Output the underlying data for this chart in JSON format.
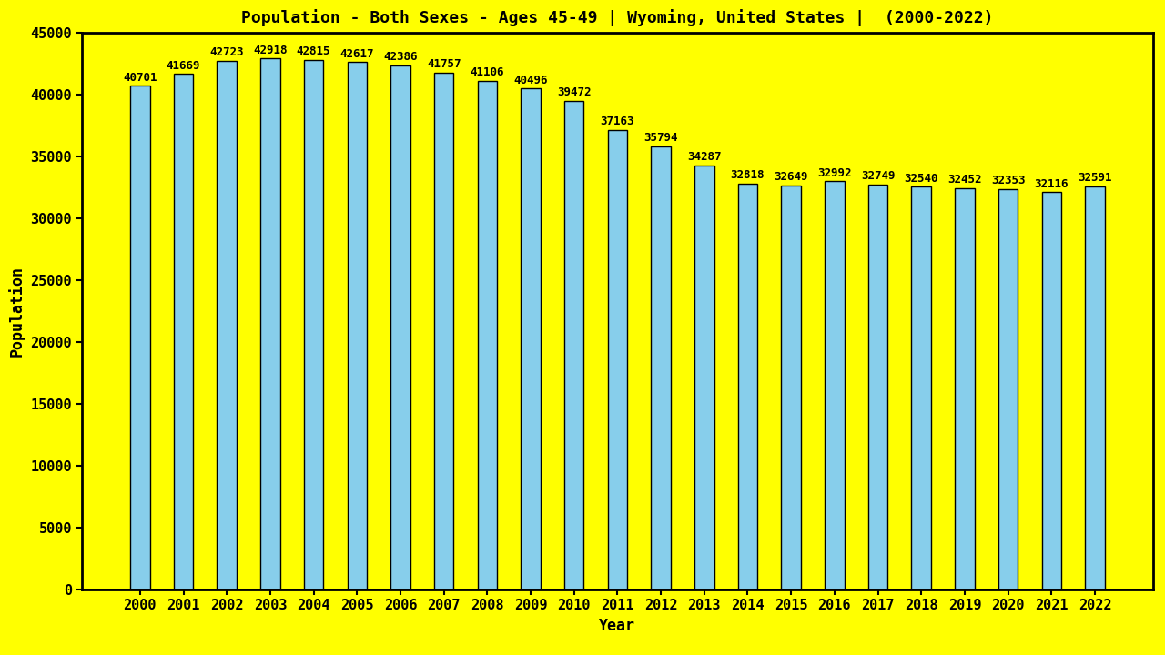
{
  "title": "Population - Both Sexes - Ages 45-49 | Wyoming, United States |  (2000-2022)",
  "xlabel": "Year",
  "ylabel": "Population",
  "background_color": "#FFFF00",
  "bar_color": "#87CEEB",
  "bar_edge_color": "#000000",
  "years": [
    2000,
    2001,
    2002,
    2003,
    2004,
    2005,
    2006,
    2007,
    2008,
    2009,
    2010,
    2011,
    2012,
    2013,
    2014,
    2015,
    2016,
    2017,
    2018,
    2019,
    2020,
    2021,
    2022
  ],
  "values": [
    40701,
    41669,
    42723,
    42918,
    42815,
    42617,
    42386,
    41757,
    41106,
    40496,
    39472,
    37163,
    35794,
    34287,
    32818,
    32649,
    32992,
    32749,
    32540,
    32452,
    32353,
    32116,
    32591
  ],
  "ylim": [
    0,
    45000
  ],
  "yticks": [
    0,
    5000,
    10000,
    15000,
    20000,
    25000,
    30000,
    35000,
    40000,
    45000
  ],
  "title_fontsize": 13,
  "axis_label_fontsize": 12,
  "tick_fontsize": 11,
  "value_fontsize": 9,
  "bar_width": 0.45
}
